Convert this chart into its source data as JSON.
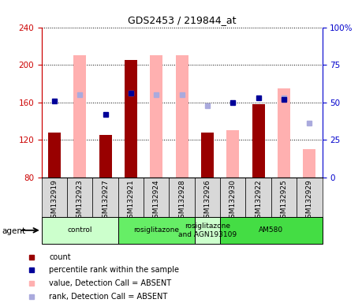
{
  "title": "GDS2453 / 219844_at",
  "samples": [
    "GSM132919",
    "GSM132923",
    "GSM132927",
    "GSM132921",
    "GSM132924",
    "GSM132928",
    "GSM132926",
    "GSM132930",
    "GSM132922",
    "GSM132925",
    "GSM132929"
  ],
  "groups": [
    {
      "label": "control",
      "color": "#ccffcc",
      "start": 0,
      "end": 3
    },
    {
      "label": "rosiglitazone",
      "color": "#66ee66",
      "start": 3,
      "end": 6
    },
    {
      "label": "rosiglitazone\nand AGN193109",
      "color": "#ccffcc",
      "start": 6,
      "end": 7
    },
    {
      "label": "AM580",
      "color": "#44dd44",
      "start": 7,
      "end": 11
    }
  ],
  "count_values": [
    128,
    null,
    125,
    205,
    null,
    null,
    128,
    null,
    158,
    null,
    null
  ],
  "count_color": "#990000",
  "absent_bar_values": [
    null,
    210,
    null,
    null,
    210,
    210,
    null,
    130,
    null,
    175,
    110
  ],
  "absent_bar_color": "#ffb0b0",
  "percentile_rank_values": [
    161,
    null,
    147,
    170,
    null,
    null,
    null,
    160,
    165,
    163,
    null
  ],
  "percentile_rank_color": "#000099",
  "absent_rank_values": [
    null,
    168,
    null,
    170,
    168,
    168,
    156,
    null,
    null,
    165,
    138
  ],
  "absent_rank_color": "#aaaadd",
  "ylim": [
    80,
    240
  ],
  "yticks_left": [
    80,
    120,
    160,
    200,
    240
  ],
  "yticks_right": [
    0,
    25,
    50,
    75,
    100
  ],
  "ylabel_left_color": "#cc0000",
  "ylabel_right_color": "#0000cc",
  "legend_items": [
    {
      "label": "count",
      "color": "#990000"
    },
    {
      "label": "percentile rank within the sample",
      "color": "#000099"
    },
    {
      "label": "value, Detection Call = ABSENT",
      "color": "#ffb0b0"
    },
    {
      "label": "rank, Detection Call = ABSENT",
      "color": "#aaaadd"
    }
  ],
  "agent_label": "agent",
  "bar_width": 0.5
}
